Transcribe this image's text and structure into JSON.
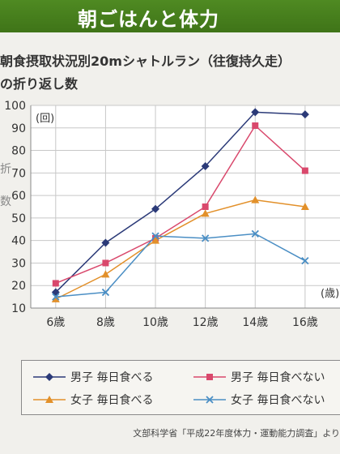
{
  "banner": {
    "title": "朝ごはんと体力",
    "accent_color": "#4f8a22"
  },
  "chart_data": {
    "type": "line",
    "title": "朝食摂取状況別20mシャトルラン（往復持久走）の折り返し数",
    "title_lines": [
      "朝食摂取状況別20mシャトルラン（往復持久走）",
      "の折り返し数"
    ],
    "ylabel_fragments": [
      "折",
      "数"
    ],
    "y_unit": "(回)",
    "x_unit": "(歳)",
    "categories": [
      "6歳",
      "8歳",
      "10歳",
      "12歳",
      "14歳",
      "16歳"
    ],
    "x": [
      6,
      8,
      10,
      12,
      14,
      16
    ],
    "ylim": [
      10,
      100
    ],
    "yticks": [
      10,
      20,
      30,
      40,
      50,
      60,
      70,
      80,
      90,
      100
    ],
    "grid": true,
    "legend_position": "bottom",
    "series": [
      {
        "name": "男子 毎日食べる",
        "marker": "diamond",
        "color": "#2b3a78",
        "values": [
          17,
          39,
          54,
          73,
          97,
          96
        ]
      },
      {
        "name": "男子 毎日食べない",
        "marker": "square",
        "color": "#d9486c",
        "values": [
          21,
          30,
          41,
          55,
          91,
          71
        ]
      },
      {
        "name": "女子 毎日食べる",
        "marker": "triangle",
        "color": "#e2902a",
        "values": [
          14,
          25,
          40,
          52,
          58,
          55
        ]
      },
      {
        "name": "女子 毎日食べない",
        "marker": "x",
        "color": "#4a8ec4",
        "values": [
          15,
          17,
          42,
          41,
          43,
          31
        ]
      }
    ]
  },
  "source": "文部科学省「平成22年度体力・運動能力調査」より"
}
